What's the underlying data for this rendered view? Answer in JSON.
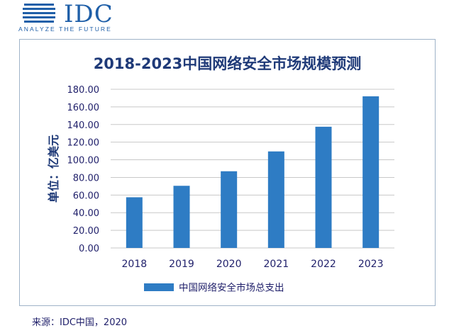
{
  "logo": {
    "text": "IDC",
    "tagline": "ANALYZE THE FUTURE"
  },
  "source_note": "来源：IDC中国，2020",
  "chart_data": {
    "type": "bar",
    "title": "2018-2023中国网络安全市场规模预测",
    "ylabel": "单位：亿美元",
    "xlabel": "",
    "categories": [
      "2018",
      "2019",
      "2020",
      "2021",
      "2022",
      "2023"
    ],
    "series": [
      {
        "name": "中国网络安全市场总支出",
        "values": [
          57.5,
          70.5,
          87.0,
          109.5,
          137.5,
          172.0
        ],
        "color": "#2e7cc4"
      }
    ],
    "ylim": [
      0,
      180
    ],
    "yticks": [
      "0.00",
      "20.00",
      "40.00",
      "60.00",
      "80.00",
      "100.00",
      "120.00",
      "140.00",
      "160.00",
      "180.00"
    ],
    "grid": true,
    "legend_position": "bottom"
  }
}
